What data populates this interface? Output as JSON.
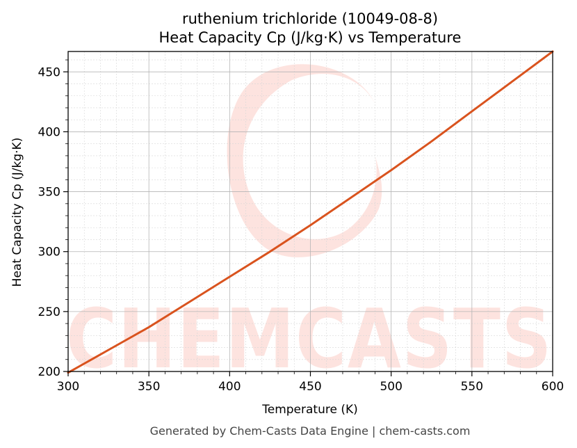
{
  "chart_data": {
    "type": "line",
    "title": "ruthenium trichloride (10049-08-8)",
    "subtitle": "Heat Capacity Cp (J/kg·K) vs Temperature",
    "xlabel": "Temperature (K)",
    "ylabel": "Heat Capacity Cp (J/kg·K)",
    "xlim": [
      300,
      600
    ],
    "ylim": [
      200,
      467
    ],
    "x_ticks": [
      300,
      350,
      400,
      450,
      500,
      550,
      600
    ],
    "y_ticks": [
      200,
      250,
      300,
      350,
      400,
      450
    ],
    "grid": true,
    "series": [
      {
        "color": "#d9531e",
        "x": [
          300,
          325,
          350,
          375,
          400,
          425,
          450,
          475,
          500,
          525,
          550,
          575,
          600
        ],
        "y": [
          199,
          218,
          237,
          258,
          279,
          300,
          322,
          345,
          368,
          392,
          417,
          442,
          467
        ]
      }
    ]
  },
  "watermark": {
    "text": "CHEMCASTS",
    "color": "#fde3df"
  },
  "footer": "Generated by Chem-Casts Data Engine | chem-casts.com"
}
